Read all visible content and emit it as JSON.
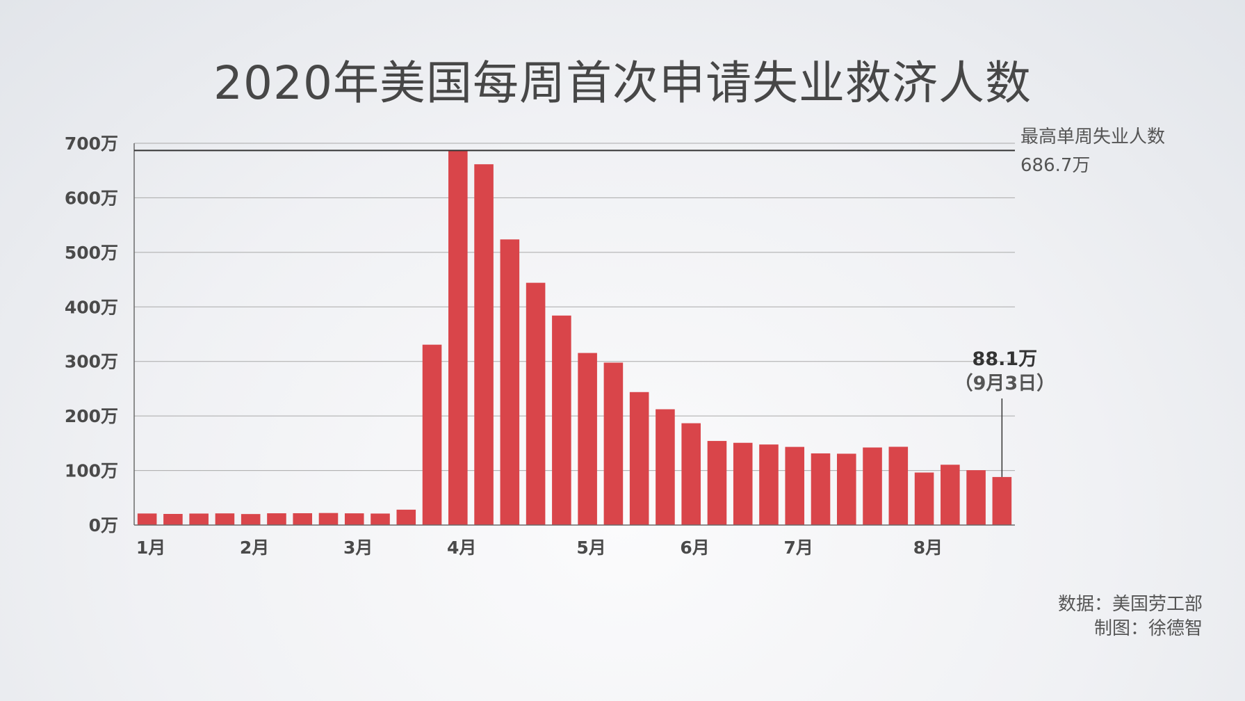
{
  "chart_data": {
    "type": "bar",
    "title": "2020年美国每周首次申请失业救济人数",
    "unit": "万",
    "ylim": [
      0,
      700
    ],
    "yticks": [
      "0万",
      "100万",
      "200万",
      "300万",
      "400万",
      "500万",
      "600万",
      "700万"
    ],
    "xtick_labels": [
      {
        "label": "1月",
        "bar_index": 0
      },
      {
        "label": "2月",
        "bar_index": 4
      },
      {
        "label": "3月",
        "bar_index": 8
      },
      {
        "label": "4月",
        "bar_index": 12
      },
      {
        "label": "5月",
        "bar_index": 17
      },
      {
        "label": "6月",
        "bar_index": 21
      },
      {
        "label": "7月",
        "bar_index": 25
      },
      {
        "label": "8月",
        "bar_index": 30
      }
    ],
    "values": [
      21.2,
      20.4,
      21.1,
      21.4,
      20.2,
      21.6,
      21.7,
      22.1,
      21.5,
      21.1,
      28.2,
      330.7,
      686.7,
      661.5,
      523.7,
      444.2,
      384.1,
      315.5,
      297.8,
      243.8,
      212.3,
      186.7,
      154.2,
      150.8,
      147.7,
      143.3,
      131.4,
      130.8,
      142.2,
      143.5,
      96.3,
      110.6,
      100.6,
      88.1
    ],
    "bar_color": "#d9454a",
    "grid": true,
    "annotations": {
      "peak": {
        "label": "最高单周失业人数",
        "value_text": "686.7万",
        "value": 686.7
      },
      "last": {
        "value_text": "88.1万",
        "date_text": "（9月3日）",
        "value": 88.1
      }
    }
  },
  "source": {
    "data_line": "数据：美国劳工部",
    "author_line": "制图：徐德智"
  }
}
